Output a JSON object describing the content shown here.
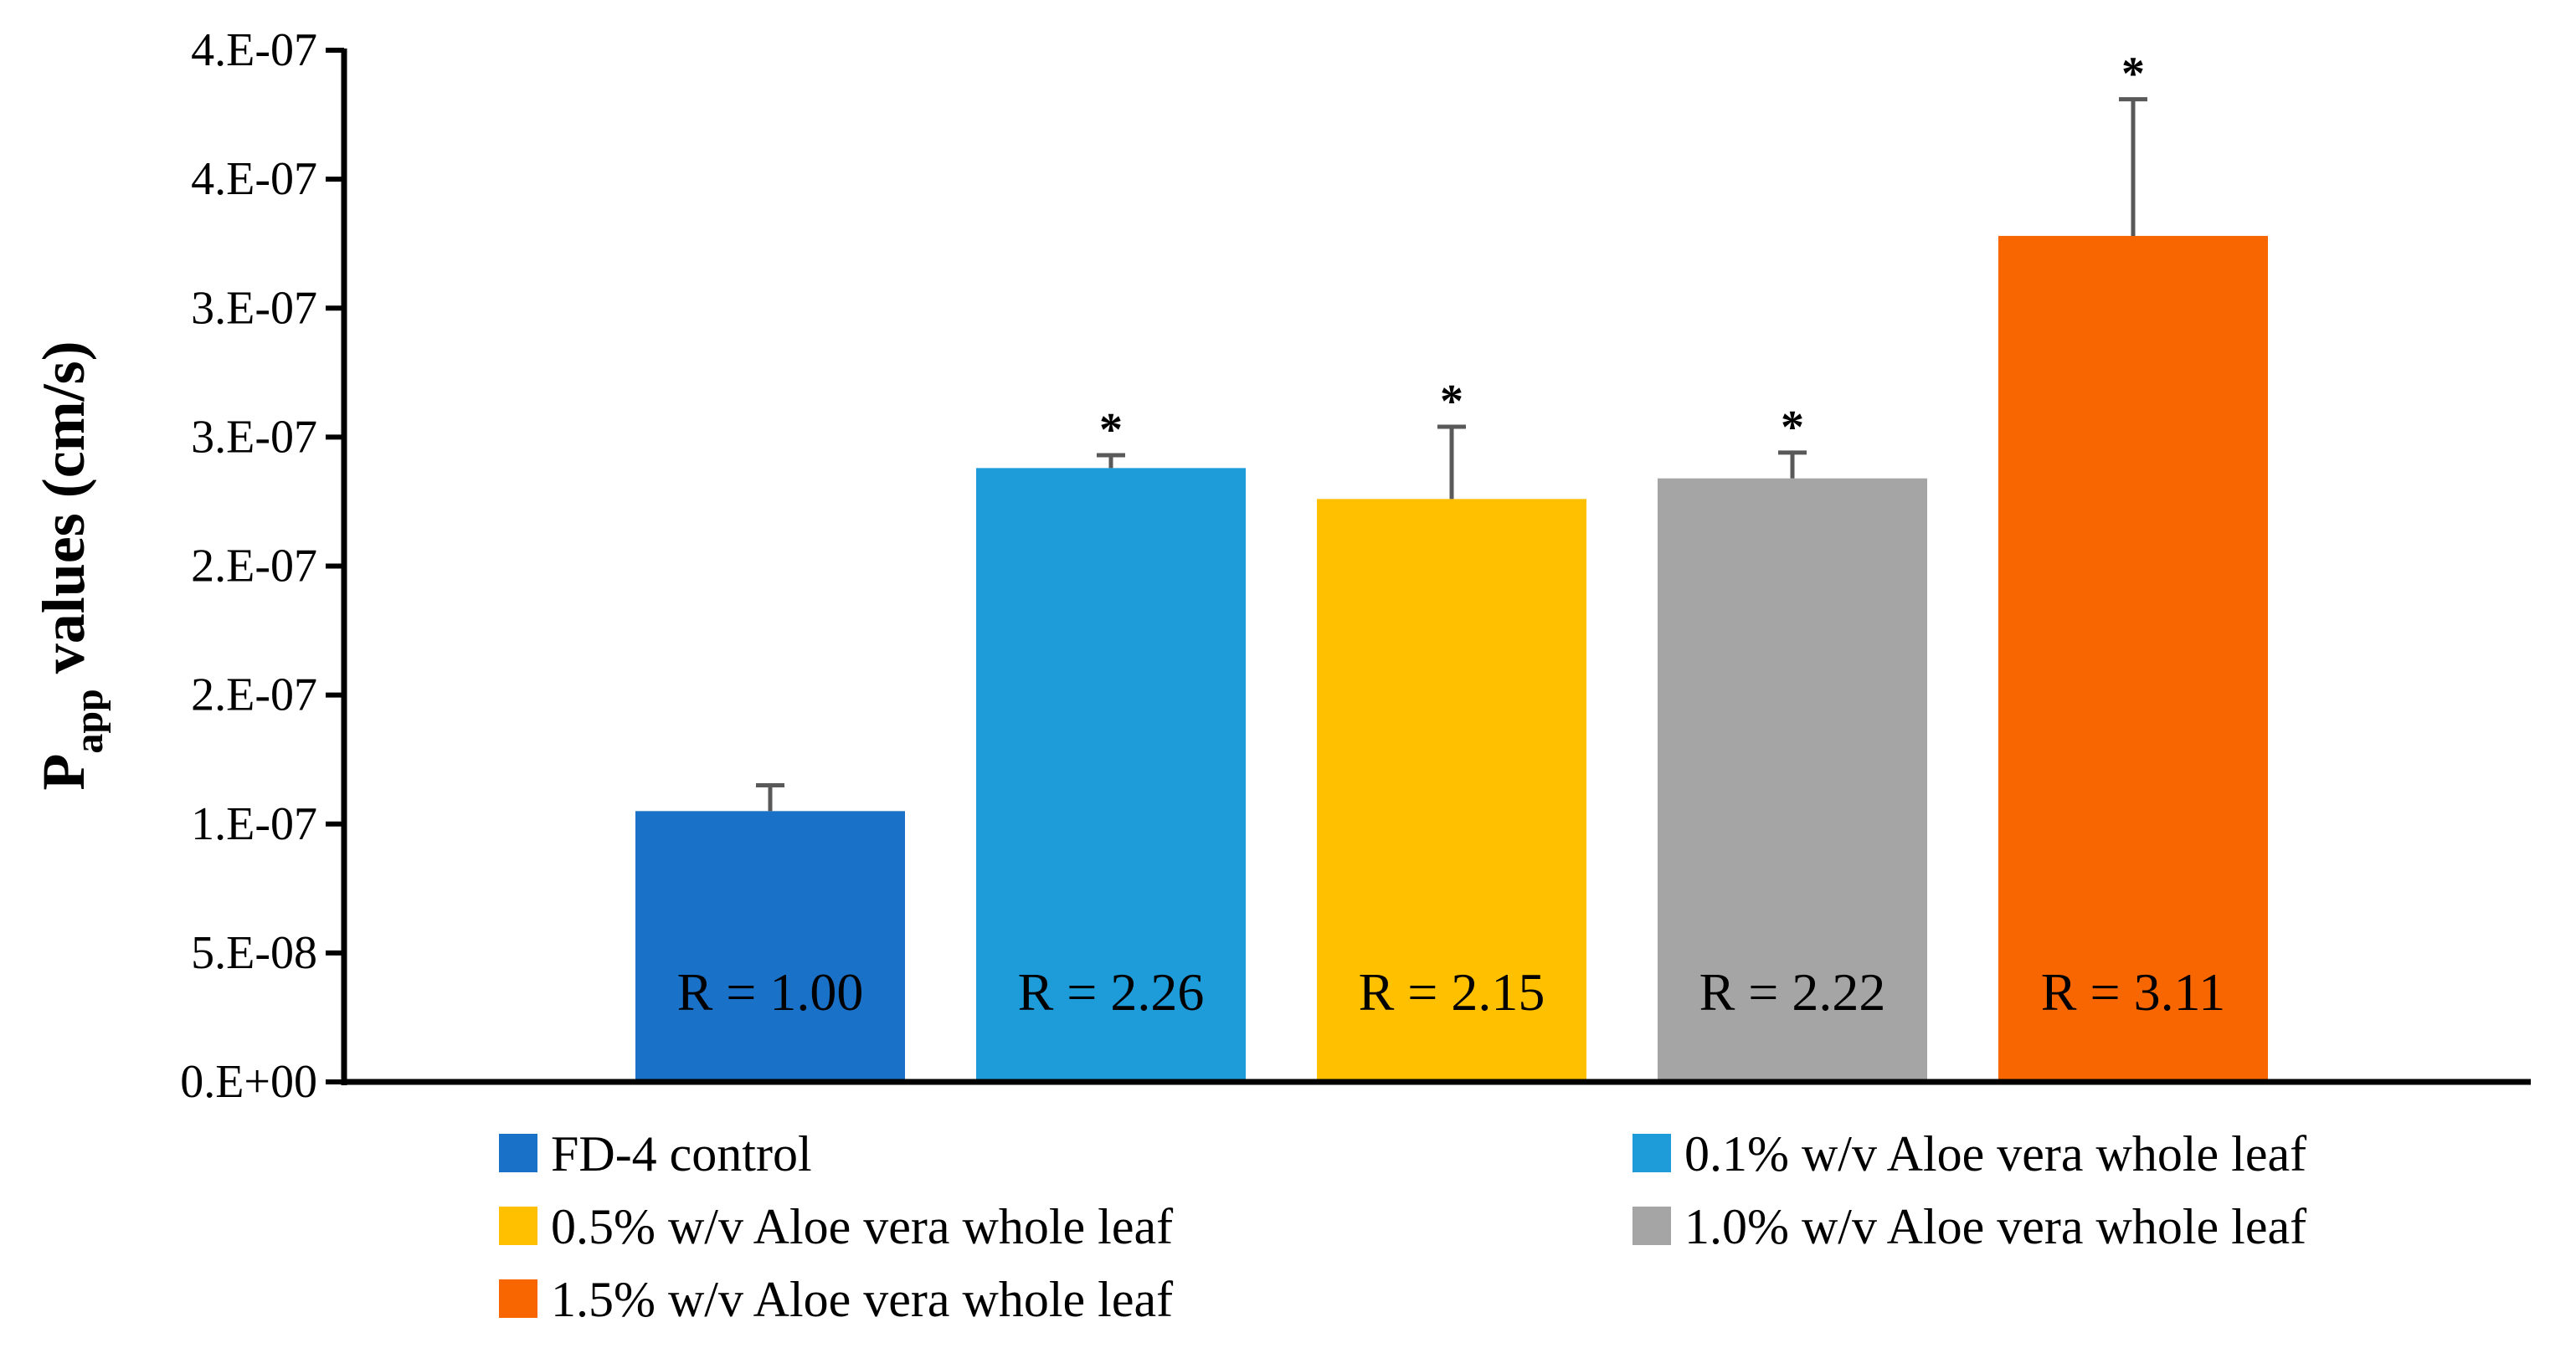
{
  "chart_data": {
    "type": "bar",
    "title": "",
    "xlabel": "",
    "ylabel": {
      "main": "P",
      "subscript": "app",
      "rest": " values (cm/s)"
    },
    "ylim": [
      0,
      4e-07
    ],
    "yticks": [
      {
        "value": 0.0,
        "label": "0.E+00"
      },
      {
        "value": 5e-08,
        "label": "5.E-08"
      },
      {
        "value": 1e-07,
        "label": "1.E-07"
      },
      {
        "value": 1.5e-07,
        "label": "2.E-07"
      },
      {
        "value": 2e-07,
        "label": "2.E-07"
      },
      {
        "value": 2.5e-07,
        "label": "3.E-07"
      },
      {
        "value": 3e-07,
        "label": "3.E-07"
      },
      {
        "value": 3.5e-07,
        "label": "4.E-07"
      },
      {
        "value": 4e-07,
        "label": "4.E-07"
      }
    ],
    "grid": false,
    "legend_position": "bottom",
    "series": [
      {
        "name": "FD-4 control",
        "value": 1.05e-07,
        "error": 1e-08,
        "color": "#1a71c8",
        "ratio_label": "R = 1.00",
        "significant": false
      },
      {
        "name": "0.1% w/v Aloe vera whole leaf",
        "value": 2.38e-07,
        "error": 5e-09,
        "color": "#1e9cd9",
        "ratio_label": "R = 2.26",
        "significant": true
      },
      {
        "name": "0.5% w/v Aloe vera whole leaf",
        "value": 2.26e-07,
        "error": 2.8e-08,
        "color": "#ffc000",
        "ratio_label": "R = 2.15",
        "significant": true
      },
      {
        "name": "1.0% w/v Aloe vera whole leaf",
        "value": 2.34e-07,
        "error": 1e-08,
        "color": "#a5a5a5",
        "ratio_label": "R = 2.22",
        "significant": true
      },
      {
        "name": "1.5% w/v Aloe vera whole leaf",
        "value": 3.28e-07,
        "error": 5.3e-08,
        "color": "#f76600",
        "ratio_label": "R = 3.11",
        "significant": true
      }
    ],
    "significance_marker": "*"
  }
}
